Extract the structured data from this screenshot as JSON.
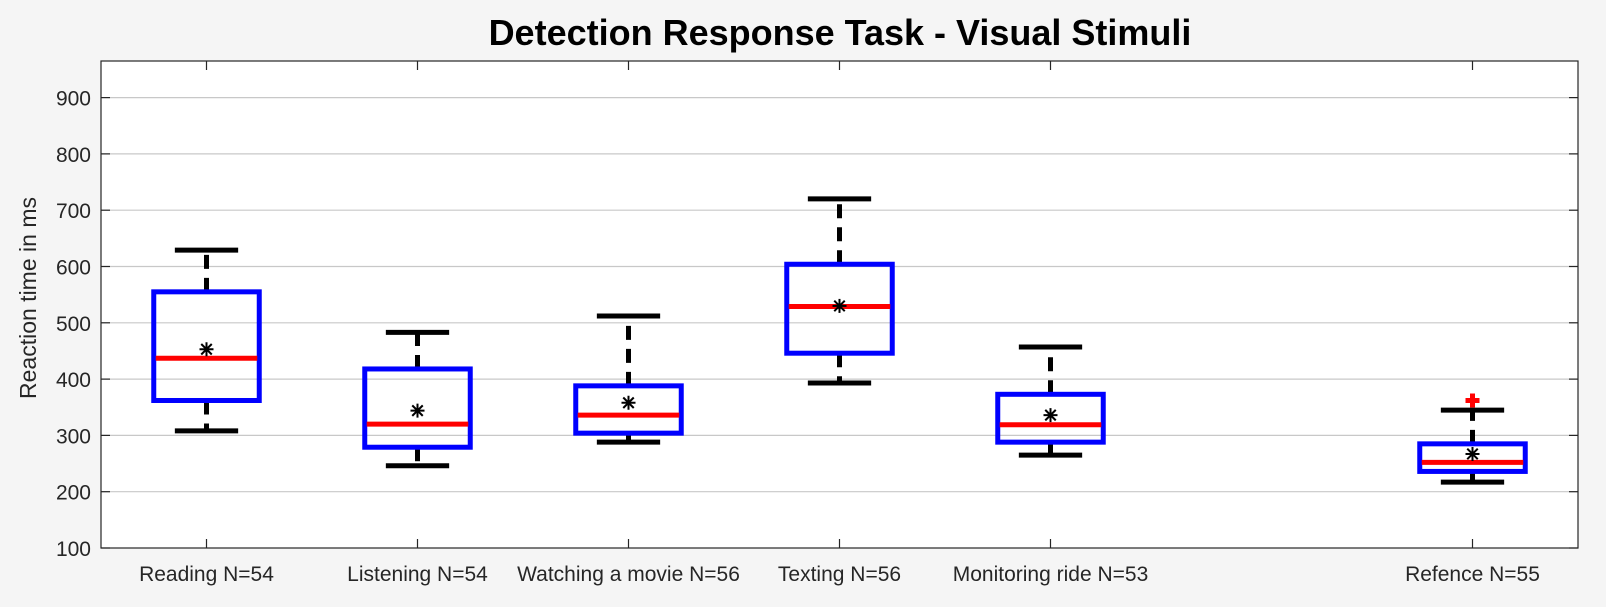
{
  "chart_data": {
    "type": "box",
    "title": "Detection Response Task - Visual Stimuli",
    "xlabel": "",
    "ylabel": "Reaction time in ms",
    "ylim": [
      100,
      965
    ],
    "yticks": [
      100,
      200,
      300,
      400,
      500,
      600,
      700,
      800,
      900
    ],
    "grid": "horizontal",
    "x_positions": [
      1,
      2,
      3,
      4,
      5,
      7
    ],
    "xlim": [
      0.5,
      7.5
    ],
    "categories": [
      "Reading N=54",
      "Listening N=54",
      "Watching a movie N=56",
      "Texting N=56",
      "Monitoring ride N=53",
      "Refence N=55"
    ],
    "boxes": [
      {
        "whisker_low": 308,
        "q1": 362,
        "median": 437,
        "q3": 555,
        "whisker_high": 629,
        "mean": 453,
        "outliers": []
      },
      {
        "whisker_low": 246,
        "q1": 279,
        "median": 320,
        "q3": 418,
        "whisker_high": 483,
        "mean": 344,
        "outliers": []
      },
      {
        "whisker_low": 288,
        "q1": 304,
        "median": 336,
        "q3": 388,
        "whisker_high": 512,
        "mean": 358,
        "outliers": []
      },
      {
        "whisker_low": 393,
        "q1": 446,
        "median": 529,
        "q3": 604,
        "whisker_high": 720,
        "mean": 530,
        "outliers": []
      },
      {
        "whisker_low": 265,
        "q1": 288,
        "median": 319,
        "q3": 373,
        "whisker_high": 457,
        "mean": 336,
        "outliers": []
      },
      {
        "whisker_low": 217,
        "q1": 236,
        "median": 252,
        "q3": 285,
        "whisker_high": 345,
        "mean": 267,
        "outliers": [
          362
        ]
      }
    ],
    "colors": {
      "box": "#0000ff",
      "median": "#ff0000",
      "whisker": "#000000",
      "mean_marker": "#000000",
      "outlier": "#ff0000",
      "grid": "#c8c8c8",
      "axes_bg": "#ffffff",
      "figure_bg": "#f5f5f5"
    }
  }
}
